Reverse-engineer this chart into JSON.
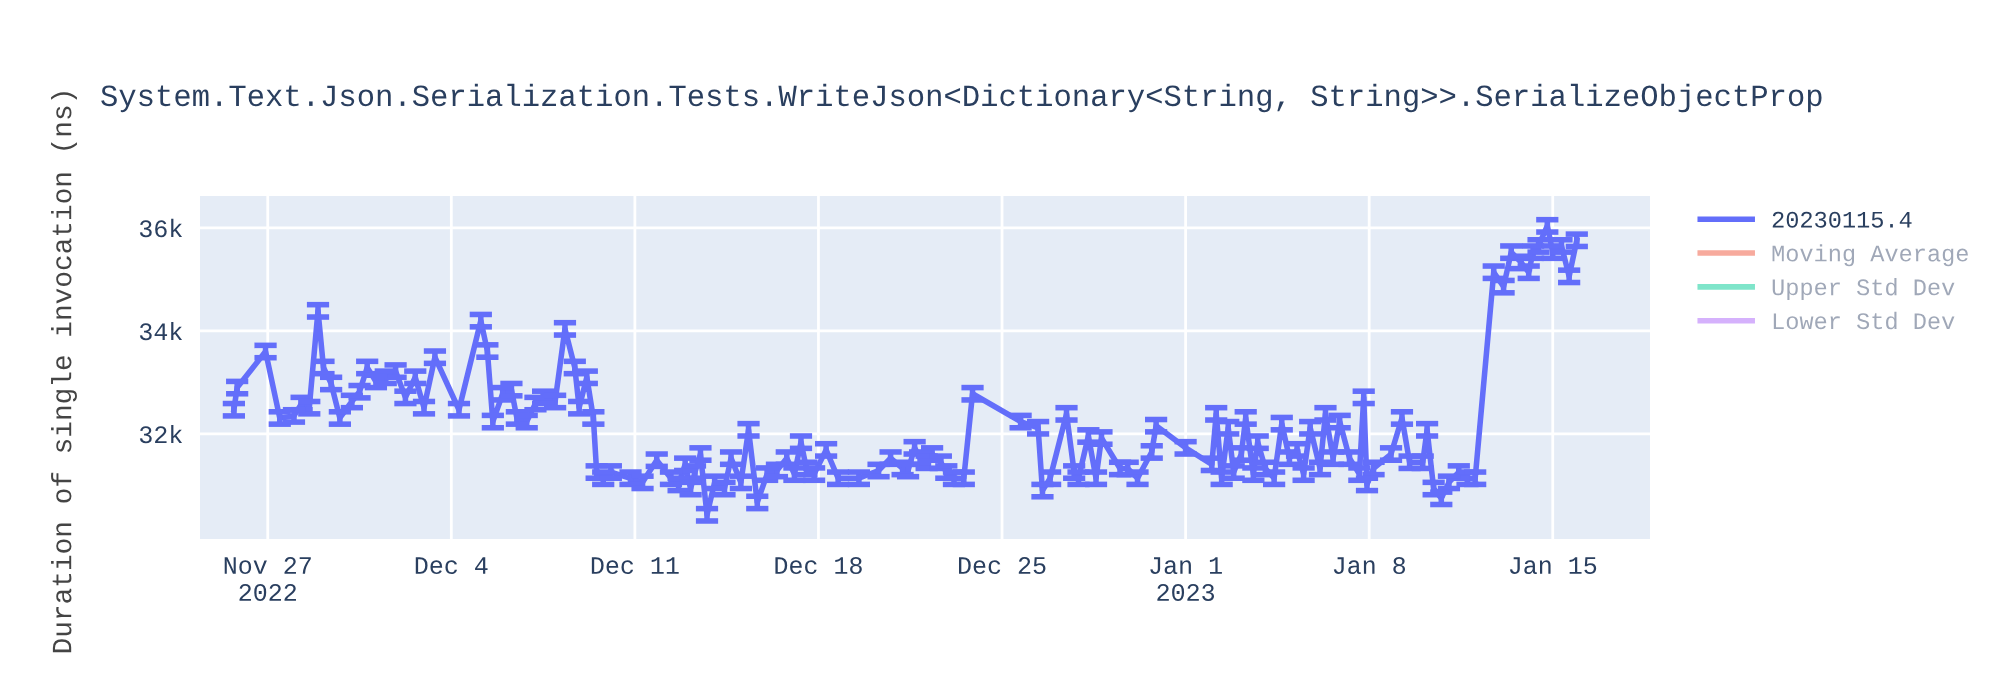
{
  "chart_data": {
    "type": "line",
    "title": "System.Text.Json.Serialization.Tests.WriteJson<Dictionary<String, String>>.SerializeObjectProp",
    "ylabel": "Duration of single invocation (ns)",
    "x": [
      "2022-11-25T17:00",
      "2022-11-25T20:00",
      "2022-11-26T22:00",
      "2022-11-27T11:00",
      "2022-11-28T00:00",
      "2022-11-28T07:00",
      "2022-11-28T14:00",
      "2022-11-28T22:00",
      "2022-11-29T03:00",
      "2022-11-29T10:00",
      "2022-11-29T18:00",
      "2022-11-30T05:00",
      "2022-11-30T12:00",
      "2022-11-30T19:00",
      "2022-12-01T03:00",
      "2022-12-01T12:00",
      "2022-12-01T21:00",
      "2022-12-02T06:00",
      "2022-12-02T15:00",
      "2022-12-02T23:00",
      "2022-12-03T09:00",
      "2022-12-04T07:00",
      "2022-12-05T03:00",
      "2022-12-05T09:00",
      "2022-12-05T14:00",
      "2022-12-05T23:00",
      "2022-12-06T07:00",
      "2022-12-06T12:00",
      "2022-12-06T21:00",
      "2022-12-07T05:00",
      "2022-12-07T12:00",
      "2022-12-07T23:00",
      "2022-12-08T08:00",
      "2022-12-08T17:00",
      "2022-12-08T21:00",
      "2022-12-09T04:00",
      "2022-12-09T10:00",
      "2022-12-09T13:00",
      "2022-12-09T19:00",
      "2022-12-10T02:00",
      "2022-12-10T20:00",
      "2022-12-11T07:00",
      "2022-12-11T20:00",
      "2022-12-12T09:00",
      "2022-12-12T16:00",
      "2022-12-12T22:00",
      "2022-12-13T03:00",
      "2022-12-13T07:00",
      "2022-12-13T12:00",
      "2022-12-13T18:00",
      "2022-12-14T01:00",
      "2022-12-14T10:00",
      "2022-12-14T16:00",
      "2022-12-15T01:00",
      "2022-12-15T08:00",
      "2022-12-15T16:00",
      "2022-12-16T01:00",
      "2022-12-16T10:00",
      "2022-12-16T19:00",
      "2022-12-17T02:00",
      "2022-12-17T08:00",
      "2022-12-17T13:00",
      "2022-12-17T20:00",
      "2022-12-18T07:00",
      "2022-12-18T18:00",
      "2022-12-19T13:00",
      "2022-12-20T07:00",
      "2022-12-20T18:00",
      "2022-12-21T05:00",
      "2022-12-21T10:00",
      "2022-12-21T16:00",
      "2022-12-21T21:00",
      "2022-12-22T03:00",
      "2022-12-22T08:00",
      "2022-12-22T16:00",
      "2022-12-22T21:00",
      "2022-12-23T04:00",
      "2022-12-23T13:00",
      "2022-12-23T21:00",
      "2022-12-25T17:00",
      "2022-12-26T09:00",
      "2022-12-26T13:00",
      "2022-12-26T20:00",
      "2022-12-27T11:00",
      "2022-12-27T18:00",
      "2022-12-27T22:00",
      "2022-12-28T07:00",
      "2022-12-28T14:00",
      "2022-12-28T19:00",
      "2022-12-29T12:00",
      "2022-12-29T19:00",
      "2022-12-30T04:00",
      "2022-12-30T17:00",
      "2022-12-30T21:00",
      "2023-01-01T00:00",
      "2023-01-02T00:00",
      "2023-01-02T04:00",
      "2023-01-02T09:00",
      "2023-01-02T15:00",
      "2023-01-02T20:00",
      "2023-01-03T03:00",
      "2023-01-03T07:00",
      "2023-01-03T14:00",
      "2023-01-03T18:00",
      "2023-01-04T01:00",
      "2023-01-04T09:00",
      "2023-01-04T16:00",
      "2023-01-04T23:00",
      "2023-01-05T06:00",
      "2023-01-05T12:00",
      "2023-01-05T18:00",
      "2023-01-06T03:00",
      "2023-01-06T08:00",
      "2023-01-06T15:00",
      "2023-01-06T21:00",
      "2023-01-07T06:00",
      "2023-01-07T15:00",
      "2023-01-07T19:00",
      "2023-01-07T22:00",
      "2023-01-08T04:00",
      "2023-01-08T20:00",
      "2023-01-09T06:00",
      "2023-01-09T13:00",
      "2023-01-10T01:00",
      "2023-01-10T05:00",
      "2023-01-10T11:00",
      "2023-01-10T18:00",
      "2023-01-11T01:00",
      "2023-01-11T10:00",
      "2023-01-11T18:00",
      "2023-01-12T01:00",
      "2023-01-12T18:00",
      "2023-01-13T03:00",
      "2023-01-13T10:00",
      "2023-01-13T19:00",
      "2023-01-14T02:00",
      "2023-01-14T06:00",
      "2023-01-14T11:00",
      "2023-01-14T19:00",
      "2023-01-15T00:00",
      "2023-01-15T08:00",
      "2023-01-15T15:00",
      "2023-01-15T22:00"
    ],
    "series": [
      {
        "name": "20230115.4",
        "color": "#636efa",
        "values": [
          32470,
          32900,
          33600,
          32310,
          32350,
          32590,
          32510,
          34390,
          33290,
          32980,
          32310,
          32630,
          32820,
          33290,
          33020,
          33100,
          33220,
          32710,
          33100,
          32510,
          33490,
          32470,
          34200,
          33610,
          32240,
          32780,
          32860,
          32310,
          32240,
          32590,
          32710,
          32630,
          34040,
          33290,
          32510,
          33100,
          32310,
          31260,
          31140,
          31260,
          31140,
          31060,
          31490,
          31140,
          31020,
          31410,
          30940,
          31260,
          31610,
          30430,
          31060,
          30940,
          31530,
          31060,
          32080,
          30670,
          31220,
          31290,
          31530,
          31220,
          31840,
          31330,
          31220,
          31690,
          31140,
          31140,
          31290,
          31530,
          31330,
          31290,
          31730,
          31530,
          31450,
          31610,
          31450,
          31260,
          31140,
          31140,
          32780,
          32240,
          32120,
          30900,
          31140,
          32390,
          31260,
          31140,
          31960,
          31140,
          31920,
          31330,
          31330,
          31140,
          31650,
          32160,
          31730,
          31410,
          32390,
          31140,
          32120,
          31260,
          31610,
          32310,
          31220,
          31840,
          31330,
          31140,
          32200,
          31530,
          31690,
          31220,
          32120,
          31330,
          32390,
          31530,
          32240,
          31530,
          31220,
          32710,
          31020,
          31330,
          31610,
          32310,
          31450,
          31450,
          32080,
          30940,
          30750,
          31060,
          31260,
          31140,
          31140,
          35140,
          34860,
          35530,
          35330,
          35140,
          35530,
          35650,
          36040,
          35530,
          35650,
          35060,
          35760
        ],
        "errors": [
          120,
          120,
          120,
          120,
          120,
          120,
          120,
          120,
          120,
          120,
          120,
          120,
          120,
          120,
          120,
          120,
          120,
          120,
          120,
          120,
          120,
          120,
          120,
          120,
          120,
          120,
          120,
          120,
          120,
          120,
          120,
          120,
          120,
          120,
          120,
          120,
          120,
          120,
          120,
          120,
          120,
          120,
          120,
          120,
          120,
          120,
          120,
          120,
          120,
          120,
          120,
          120,
          120,
          120,
          120,
          120,
          120,
          120,
          120,
          120,
          120,
          120,
          120,
          120,
          120,
          120,
          120,
          120,
          120,
          120,
          120,
          120,
          120,
          120,
          120,
          120,
          120,
          120,
          120,
          120,
          120,
          120,
          120,
          120,
          120,
          120,
          120,
          120,
          120,
          120,
          120,
          120,
          120,
          120,
          120,
          120,
          120,
          120,
          120,
          120,
          120,
          120,
          120,
          120,
          120,
          120,
          120,
          120,
          120,
          120,
          120,
          120,
          120,
          120,
          120,
          120,
          120,
          120,
          120,
          120,
          120,
          120,
          120,
          120,
          120,
          120,
          120,
          120,
          120,
          120,
          120,
          120,
          120,
          120,
          120,
          120,
          120,
          120,
          120,
          120,
          120,
          120,
          120
        ]
      },
      {
        "name": "Moving Average",
        "color": "#ef553b",
        "values": [
          null,
          null,
          null,
          null,
          null,
          null,
          null,
          null,
          null,
          null,
          null,
          null,
          null,
          null,
          null,
          null,
          null,
          null,
          null,
          null,
          null,
          null,
          null,
          null,
          null,
          null,
          null,
          null,
          null,
          null,
          null,
          null,
          null,
          null,
          null,
          null,
          null,
          null,
          null,
          null,
          null,
          null,
          null,
          null,
          null,
          null,
          null,
          null,
          null,
          null,
          null,
          null,
          null,
          null,
          null,
          null,
          null,
          null,
          null,
          null,
          null,
          null,
          null,
          null,
          null,
          null,
          null,
          null,
          null,
          null,
          null,
          null,
          null,
          null,
          null,
          null,
          null,
          null,
          null,
          null,
          null,
          null,
          null,
          null,
          null,
          null,
          null,
          null,
          null,
          null,
          null,
          null,
          null,
          null,
          null,
          null,
          null,
          null,
          null,
          null,
          null,
          null,
          null,
          null,
          null,
          null,
          null,
          null,
          null,
          null,
          null,
          null,
          null,
          null,
          null,
          null,
          null,
          null,
          null,
          null,
          null,
          null,
          null,
          null,
          null,
          null,
          null,
          null,
          null,
          null,
          null,
          null,
          null,
          null,
          null,
          null,
          null,
          null,
          null,
          null,
          null,
          null,
          null
        ]
      },
      {
        "name": "Upper Std Dev",
        "color": "#00cc96",
        "values": [
          null,
          null,
          null,
          null,
          null,
          null,
          null,
          null,
          null,
          null,
          null,
          null,
          null,
          null,
          null,
          null,
          null,
          null,
          null,
          null,
          null,
          null,
          null,
          null,
          null,
          null,
          null,
          null,
          null,
          null,
          null,
          null,
          null,
          null,
          null,
          null,
          null,
          null,
          null,
          null,
          null,
          null,
          null,
          null,
          null,
          null,
          null,
          null,
          null,
          null,
          null,
          null,
          null,
          null,
          null,
          null,
          null,
          null,
          null,
          null,
          null,
          null,
          null,
          null,
          null,
          null,
          null,
          null,
          null,
          null,
          null,
          null,
          null,
          null,
          null,
          null,
          null,
          null,
          null,
          null,
          null,
          null,
          null,
          null,
          null,
          null,
          null,
          null,
          null,
          null,
          null,
          null,
          null,
          null,
          null,
          null,
          null,
          null,
          null,
          null,
          null,
          null,
          null,
          null,
          null,
          null,
          null,
          null,
          null,
          null,
          null,
          null,
          null,
          null,
          null,
          null,
          null,
          null,
          null,
          null,
          null,
          null,
          null,
          null,
          null,
          null,
          null,
          null,
          null,
          null,
          null,
          null,
          null,
          null,
          null,
          null,
          null,
          null,
          null,
          null,
          null,
          null,
          null
        ]
      },
      {
        "name": "Lower Std Dev",
        "color": "#ab63fa",
        "values": [
          null,
          null,
          null,
          null,
          null,
          null,
          null,
          null,
          null,
          null,
          null,
          null,
          null,
          null,
          null,
          null,
          null,
          null,
          null,
          null,
          null,
          null,
          null,
          null,
          null,
          null,
          null,
          null,
          null,
          null,
          null,
          null,
          null,
          null,
          null,
          null,
          null,
          null,
          null,
          null,
          null,
          null,
          null,
          null,
          null,
          null,
          null,
          null,
          null,
          null,
          null,
          null,
          null,
          null,
          null,
          null,
          null,
          null,
          null,
          null,
          null,
          null,
          null,
          null,
          null,
          null,
          null,
          null,
          null,
          null,
          null,
          null,
          null,
          null,
          null,
          null,
          null,
          null,
          null,
          null,
          null,
          null,
          null,
          null,
          null,
          null,
          null,
          null,
          null,
          null,
          null,
          null,
          null,
          null,
          null,
          null,
          null,
          null,
          null,
          null,
          null,
          null,
          null,
          null,
          null,
          null,
          null,
          null,
          null,
          null,
          null,
          null,
          null,
          null,
          null,
          null,
          null,
          null,
          null,
          null,
          null,
          null,
          null,
          null,
          null,
          null,
          null,
          null,
          null,
          null,
          null,
          null,
          null,
          null,
          null,
          null,
          null,
          null,
          null,
          null,
          null,
          null,
          null
        ]
      }
    ],
    "xlim": [
      "2022-11-24T10:00",
      "2023-01-18T17:00"
    ],
    "xticks": [
      {
        "value": "2022-11-27",
        "label": "Nov 27\n2022"
      },
      {
        "value": "2022-12-04",
        "label": "Dec 4"
      },
      {
        "value": "2022-12-11",
        "label": "Dec 11"
      },
      {
        "value": "2022-12-18",
        "label": "Dec 18"
      },
      {
        "value": "2022-12-25",
        "label": "Dec 25"
      },
      {
        "value": "2023-01-01",
        "label": "Jan 1\n2023"
      },
      {
        "value": "2023-01-08",
        "label": "Jan 8"
      },
      {
        "value": "2023-01-15",
        "label": "Jan 15"
      }
    ],
    "ylim": [
      29960,
      36620
    ],
    "yticks": [
      {
        "value": 32000,
        "label": "32k"
      },
      {
        "value": 34000,
        "label": "34k"
      },
      {
        "value": 36000,
        "label": "36k"
      }
    ],
    "grid": true,
    "legend": "top right"
  }
}
